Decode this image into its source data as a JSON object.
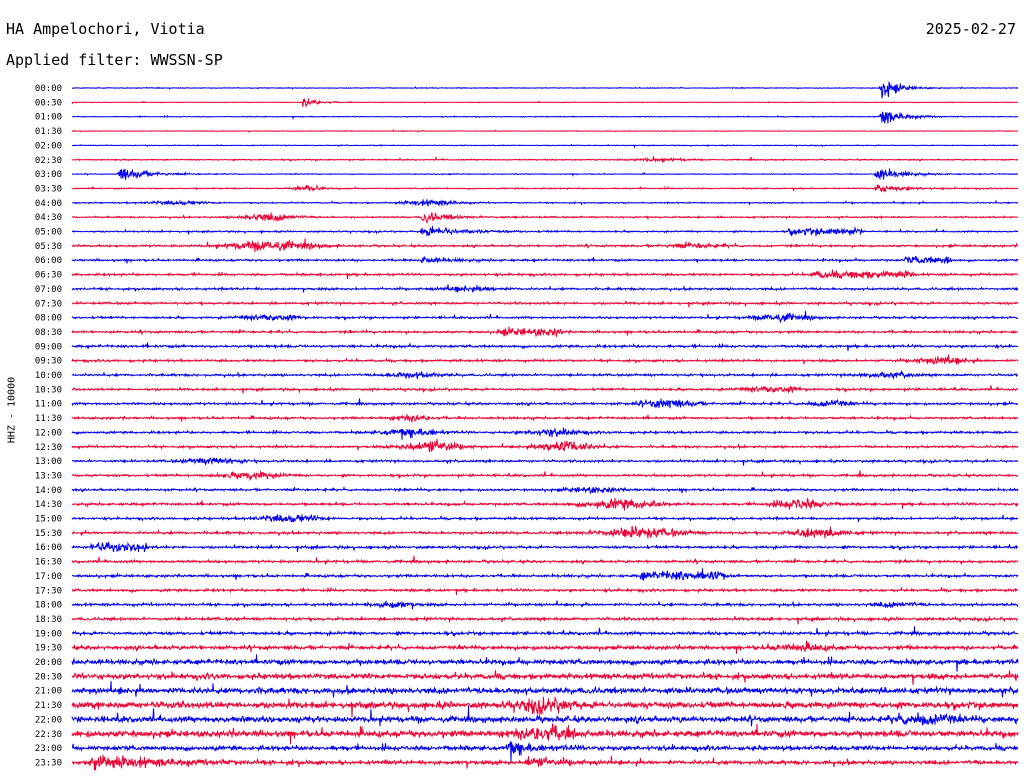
{
  "header": {
    "station": "HA Ampelochori, Viotia",
    "date": "2025-02-27",
    "filter": "Applied filter: WWSSN-SP"
  },
  "chart_data": {
    "type": "line",
    "title": "",
    "ylabel": "HHZ - 10000",
    "trace_colors": [
      "#0000ee",
      "#ee0033"
    ],
    "row_labels": [
      "00:00",
      "00:30",
      "01:00",
      "01:30",
      "02:00",
      "02:30",
      "03:00",
      "03:30",
      "04:00",
      "04:30",
      "05:00",
      "05:30",
      "06:00",
      "06:30",
      "07:00",
      "07:30",
      "08:00",
      "08:30",
      "09:00",
      "09:30",
      "10:00",
      "10:30",
      "11:00",
      "11:30",
      "12:00",
      "12:30",
      "13:00",
      "13:30",
      "14:00",
      "14:30",
      "15:00",
      "15:30",
      "16:00",
      "16:30",
      "17:00",
      "17:30",
      "18:00",
      "18:30",
      "19:00",
      "19:30",
      "20:00",
      "20:30",
      "21:00",
      "21:30",
      "22:00",
      "22:30",
      "23:00",
      "23:30"
    ],
    "rows": [
      {
        "noise": 0.08,
        "events": [
          {
            "at": 0.855,
            "amp": 2.8,
            "dur": 0.012,
            "shape": "burst"
          }
        ]
      },
      {
        "noise": 0.06,
        "events": [
          {
            "at": 0.245,
            "amp": 1.4,
            "dur": 0.01,
            "shape": "burst"
          }
        ]
      },
      {
        "noise": 0.08,
        "events": [
          {
            "at": 0.855,
            "amp": 2.2,
            "dur": 0.015,
            "shape": "burst"
          }
        ]
      },
      {
        "noise": 0.06,
        "events": []
      },
      {
        "noise": 0.08,
        "events": []
      },
      {
        "noise": 0.12,
        "events": [
          {
            "at": 0.62,
            "amp": 0.3,
            "dur": 0.02,
            "shape": "spindle"
          }
        ]
      },
      {
        "noise": 0.08,
        "events": [
          {
            "at": 0.05,
            "amp": 1.8,
            "dur": 0.02,
            "shape": "burst"
          },
          {
            "at": 0.85,
            "amp": 1.5,
            "dur": 0.02,
            "shape": "burst"
          }
        ]
      },
      {
        "noise": 0.12,
        "events": [
          {
            "at": 0.25,
            "amp": 0.6,
            "dur": 0.01,
            "shape": "spindle"
          },
          {
            "at": 0.85,
            "amp": 1.0,
            "dur": 0.02,
            "shape": "burst"
          }
        ]
      },
      {
        "noise": 0.12,
        "events": [
          {
            "at": 0.11,
            "amp": 0.4,
            "dur": 0.02,
            "shape": "spindle"
          },
          {
            "at": 0.38,
            "amp": 0.6,
            "dur": 0.02,
            "shape": "spindle"
          }
        ]
      },
      {
        "noise": 0.15,
        "events": [
          {
            "at": 0.21,
            "amp": 0.8,
            "dur": 0.02,
            "shape": "spindle"
          },
          {
            "at": 0.37,
            "amp": 1.3,
            "dur": 0.02,
            "shape": "burst"
          }
        ]
      },
      {
        "noise": 0.15,
        "events": [
          {
            "at": 0.37,
            "amp": 1.2,
            "dur": 0.03,
            "shape": "burst"
          },
          {
            "at": 0.755,
            "amp": 0.6,
            "dur": 0.04,
            "shape": "box"
          }
        ]
      },
      {
        "noise": 0.2,
        "events": [
          {
            "at": 0.21,
            "amp": 1.1,
            "dur": 0.03,
            "shape": "spindle"
          },
          {
            "at": 0.66,
            "amp": 0.5,
            "dur": 0.02,
            "shape": "spindle"
          }
        ]
      },
      {
        "noise": 0.2,
        "events": [
          {
            "at": 0.37,
            "amp": 0.7,
            "dur": 0.02,
            "shape": "burst"
          },
          {
            "at": 0.88,
            "amp": 0.6,
            "dur": 0.025,
            "shape": "box"
          }
        ]
      },
      {
        "noise": 0.22,
        "events": [
          {
            "at": 0.78,
            "amp": 0.6,
            "dur": 0.055,
            "shape": "box"
          }
        ]
      },
      {
        "noise": 0.22,
        "events": [
          {
            "at": 0.42,
            "amp": 0.5,
            "dur": 0.02,
            "shape": "spindle"
          }
        ]
      },
      {
        "noise": 0.22,
        "events": []
      },
      {
        "noise": 0.2,
        "events": [
          {
            "at": 0.21,
            "amp": 0.6,
            "dur": 0.02,
            "shape": "spindle"
          },
          {
            "at": 0.75,
            "amp": 0.8,
            "dur": 0.02,
            "shape": "spindle"
          }
        ]
      },
      {
        "noise": 0.22,
        "events": [
          {
            "at": 0.45,
            "amp": 0.6,
            "dur": 0.035,
            "shape": "box"
          }
        ]
      },
      {
        "noise": 0.25,
        "events": []
      },
      {
        "noise": 0.22,
        "events": [
          {
            "at": 0.92,
            "amp": 0.7,
            "dur": 0.02,
            "shape": "spindle"
          }
        ]
      },
      {
        "noise": 0.22,
        "events": [
          {
            "at": 0.36,
            "amp": 0.5,
            "dur": 0.02,
            "shape": "spindle"
          },
          {
            "at": 0.86,
            "amp": 0.5,
            "dur": 0.02,
            "shape": "spindle"
          }
        ]
      },
      {
        "noise": 0.22,
        "events": [
          {
            "at": 0.74,
            "amp": 0.6,
            "dur": 0.02,
            "shape": "spindle"
          }
        ]
      },
      {
        "noise": 0.22,
        "events": [
          {
            "at": 0.63,
            "amp": 0.9,
            "dur": 0.02,
            "shape": "spindle"
          },
          {
            "at": 0.8,
            "amp": 0.6,
            "dur": 0.015,
            "shape": "spindle"
          }
        ]
      },
      {
        "noise": 0.22,
        "events": [
          {
            "at": 0.36,
            "amp": 0.6,
            "dur": 0.015,
            "shape": "spindle"
          }
        ]
      },
      {
        "noise": 0.22,
        "events": [
          {
            "at": 0.36,
            "amp": 0.8,
            "dur": 0.02,
            "shape": "spindle"
          },
          {
            "at": 0.51,
            "amp": 0.7,
            "dur": 0.02,
            "shape": "spindle"
          }
        ]
      },
      {
        "noise": 0.22,
        "events": [
          {
            "at": 0.38,
            "amp": 1.3,
            "dur": 0.02,
            "shape": "spindle"
          },
          {
            "at": 0.52,
            "amp": 1.2,
            "dur": 0.02,
            "shape": "spindle"
          }
        ]
      },
      {
        "noise": 0.22,
        "events": [
          {
            "at": 0.15,
            "amp": 0.6,
            "dur": 0.02,
            "shape": "spindle"
          }
        ]
      },
      {
        "noise": 0.22,
        "events": [
          {
            "at": 0.19,
            "amp": 0.8,
            "dur": 0.02,
            "shape": "spindle"
          }
        ]
      },
      {
        "noise": 0.22,
        "events": [
          {
            "at": 0.55,
            "amp": 0.5,
            "dur": 0.02,
            "shape": "spindle"
          }
        ]
      },
      {
        "noise": 0.25,
        "events": [
          {
            "at": 0.58,
            "amp": 1.0,
            "dur": 0.025,
            "shape": "spindle"
          },
          {
            "at": 0.77,
            "amp": 1.0,
            "dur": 0.02,
            "shape": "spindle"
          }
        ]
      },
      {
        "noise": 0.22,
        "events": [
          {
            "at": 0.23,
            "amp": 0.8,
            "dur": 0.02,
            "shape": "spindle"
          }
        ]
      },
      {
        "noise": 0.25,
        "events": [
          {
            "at": 0.6,
            "amp": 1.1,
            "dur": 0.03,
            "shape": "spindle"
          },
          {
            "at": 0.79,
            "amp": 1.0,
            "dur": 0.02,
            "shape": "spindle"
          }
        ]
      },
      {
        "noise": 0.25,
        "events": [
          {
            "at": 0.02,
            "amp": 0.7,
            "dur": 0.03,
            "shape": "box"
          }
        ]
      },
      {
        "noise": 0.25,
        "events": []
      },
      {
        "noise": 0.25,
        "events": [
          {
            "at": 0.6,
            "amp": 0.8,
            "dur": 0.045,
            "shape": "box"
          }
        ]
      },
      {
        "noise": 0.25,
        "events": []
      },
      {
        "noise": 0.25,
        "events": [
          {
            "at": 0.34,
            "amp": 0.6,
            "dur": 0.015,
            "shape": "spindle"
          },
          {
            "at": 0.87,
            "amp": 0.5,
            "dur": 0.015,
            "shape": "spindle"
          }
        ]
      },
      {
        "noise": 0.28,
        "events": []
      },
      {
        "noise": 0.3,
        "events": []
      },
      {
        "noise": 0.38,
        "events": [
          {
            "at": 0.77,
            "amp": 0.6,
            "dur": 0.02,
            "shape": "spindle"
          }
        ]
      },
      {
        "noise": 0.5,
        "events": []
      },
      {
        "noise": 0.55,
        "events": []
      },
      {
        "noise": 0.6,
        "events": []
      },
      {
        "noise": 0.65,
        "events": [
          {
            "at": 0.5,
            "amp": 1.2,
            "dur": 0.02,
            "shape": "spindle"
          }
        ]
      },
      {
        "noise": 0.6,
        "events": [
          {
            "at": 0.9,
            "amp": 1.0,
            "dur": 0.02,
            "shape": "spindle"
          }
        ]
      },
      {
        "noise": 0.65,
        "events": [
          {
            "at": 0.5,
            "amp": 1.4,
            "dur": 0.02,
            "shape": "spindle"
          }
        ]
      },
      {
        "noise": 0.45,
        "events": [
          {
            "at": 0.46,
            "amp": 1.6,
            "dur": 0.02,
            "shape": "burst"
          }
        ]
      },
      {
        "noise": 0.4,
        "events": [
          {
            "at": 0.02,
            "amp": 1.8,
            "dur": 0.05,
            "shape": "burst"
          },
          {
            "at": 0.48,
            "amp": 1.5,
            "dur": 0.02,
            "shape": "burst"
          }
        ]
      }
    ]
  }
}
